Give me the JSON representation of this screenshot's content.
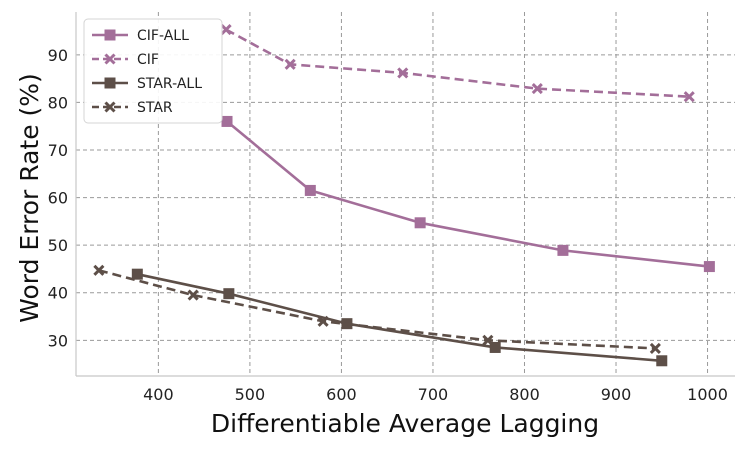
{
  "chart_data": {
    "type": "line",
    "title": "",
    "xlabel": "Differentiable Average Lagging",
    "ylabel": "Word Error Rate (%)",
    "xlim": [
      310,
      1030
    ],
    "ylim": [
      22.5,
      99
    ],
    "xticks": [
      400,
      500,
      600,
      700,
      800,
      900,
      1000
    ],
    "yticks": [
      30,
      40,
      50,
      60,
      70,
      80,
      90
    ],
    "grid": true,
    "legend_position": "top-left",
    "series": [
      {
        "name": "CIF-ALL",
        "color": "#a36e99",
        "linestyle": "solid",
        "marker": "square",
        "x": [
          475,
          566,
          686,
          842,
          1002
        ],
        "y": [
          76.0,
          61.5,
          54.7,
          48.9,
          45.5
        ]
      },
      {
        "name": "CIF",
        "color": "#a36e99",
        "linestyle": "dashed",
        "marker": "x",
        "x": [
          474,
          544,
          667,
          814,
          980
        ],
        "y": [
          95.3,
          88.0,
          86.2,
          82.9,
          81.2
        ]
      },
      {
        "name": "STAR-ALL",
        "color": "#5d4f48",
        "linestyle": "solid",
        "marker": "square",
        "x": [
          377,
          477,
          606,
          768,
          950
        ],
        "y": [
          43.9,
          39.8,
          33.5,
          28.5,
          25.7
        ]
      },
      {
        "name": "STAR",
        "color": "#5d4f48",
        "linestyle": "dashed",
        "marker": "x",
        "x": [
          335,
          438,
          580,
          760,
          943
        ],
        "y": [
          44.7,
          39.5,
          34.0,
          30.0,
          28.3
        ]
      }
    ]
  }
}
